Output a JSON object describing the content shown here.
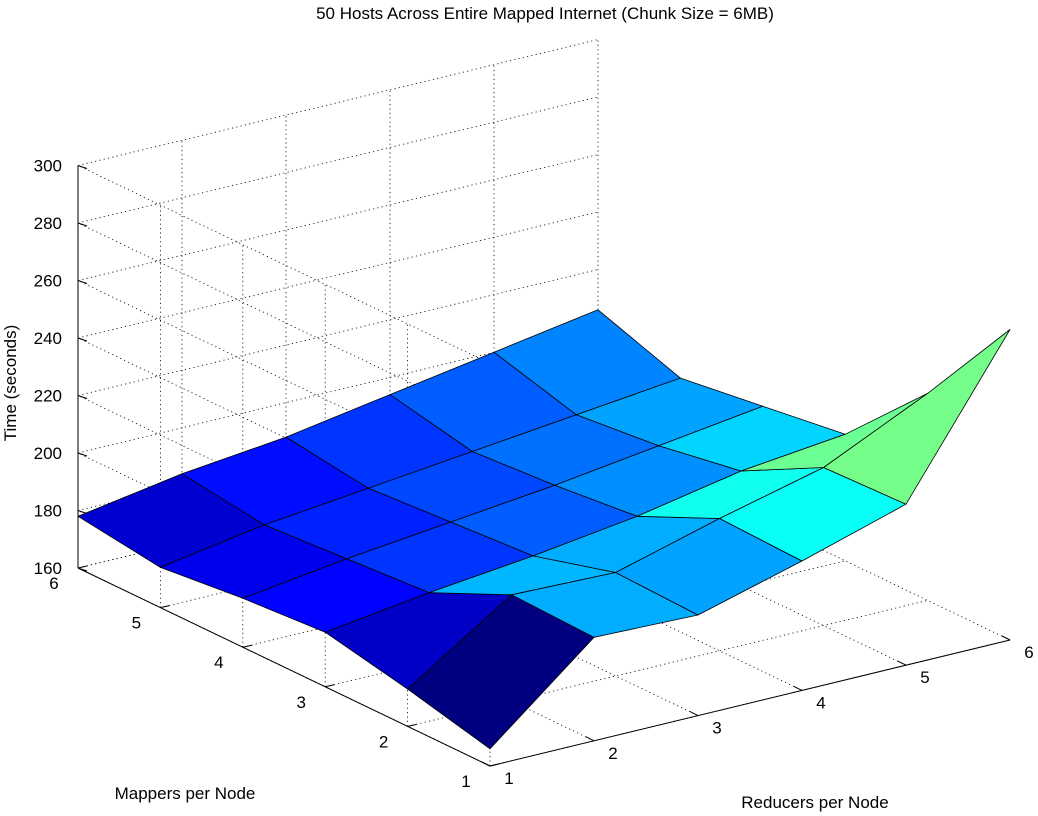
{
  "chart_data": {
    "type": "surface",
    "title": "50 Hosts Across Entire Mapped Internet (Chunk Size = 6MB)",
    "xlabel": "Reducers per Node",
    "ylabel": "Mappers per Node",
    "zlabel": "Time (seconds)",
    "x": [
      1,
      2,
      3,
      4,
      5,
      6
    ],
    "y": [
      1,
      2,
      3,
      4,
      5,
      6
    ],
    "zlim": [
      160,
      300
    ],
    "z_ticks": [
      160,
      180,
      200,
      220,
      240,
      260,
      280,
      300
    ],
    "grid": true,
    "colormap": "jet",
    "z": [
      [
        166,
        196,
        195,
        205,
        216,
        268
      ],
      [
        173,
        197,
        196,
        206,
        215,
        232
      ],
      [
        179,
        184,
        188,
        193,
        200,
        204
      ],
      [
        177,
        182,
        186,
        190,
        195,
        200
      ],
      [
        174,
        180,
        184,
        188,
        192,
        196
      ],
      [
        178,
        184,
        188,
        194,
        200,
        206
      ]
    ]
  }
}
